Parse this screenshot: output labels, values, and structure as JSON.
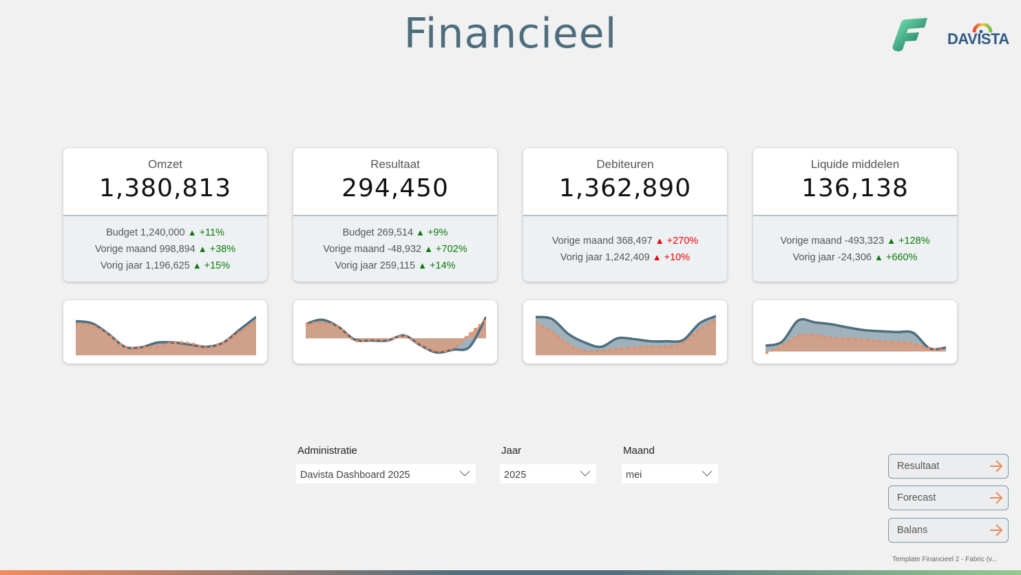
{
  "title": "Financieel",
  "logos": {
    "fabric": "Fabric logo",
    "davista": "DAVISTA"
  },
  "colors": {
    "accent": "#4e6e7e",
    "good": "#0b7a0b",
    "bad": "#e00000",
    "compare": "#f08a5a"
  },
  "cards": [
    {
      "label": "Omzet",
      "value": "1,380,813",
      "rows": [
        {
          "text": "Budget 1,240,000",
          "delta": "+11%",
          "status": "up"
        },
        {
          "text": "Vorige maand 998,894",
          "delta": "+38%",
          "status": "up"
        },
        {
          "text": "Vorig jaar 1,196,625",
          "delta": "+15%",
          "status": "up"
        }
      ]
    },
    {
      "label": "Resultaat",
      "value": "294,450",
      "rows": [
        {
          "text": "Budget 269,514",
          "delta": "+9%",
          "status": "up"
        },
        {
          "text": "Vorige maand -48,932",
          "delta": "+702%",
          "status": "up"
        },
        {
          "text": "Vorig jaar 259,115",
          "delta": "+14%",
          "status": "up"
        }
      ]
    },
    {
      "label": "Debiteuren",
      "value": "1,362,890",
      "rows": [
        {
          "text": "Vorige maand 368,497",
          "delta": "+270%",
          "status": "bad"
        },
        {
          "text": "Vorig jaar 1,242,409",
          "delta": "+10%",
          "status": "bad"
        }
      ]
    },
    {
      "label": "Liquide middelen",
      "value": "136,138",
      "rows": [
        {
          "text": "Vorige maand -493,323",
          "delta": "+128%",
          "status": "up"
        },
        {
          "text": "Vorig jaar -24,306",
          "delta": "+660%",
          "status": "up"
        }
      ]
    }
  ],
  "chart_data": [
    {
      "type": "area",
      "name": "Omzet trend",
      "ylim": [
        0,
        1
      ],
      "baseline": 0,
      "series": [
        {
          "name": "actual",
          "values": [
            0.8,
            0.75,
            0.5,
            0.2,
            0.19,
            0.3,
            0.3,
            0.25,
            0.2,
            0.3,
            0.6,
            0.9
          ]
        },
        {
          "name": "vergelijking",
          "values": [
            0.73,
            0.7,
            0.48,
            0.2,
            0.19,
            0.22,
            0.3,
            0.28,
            0.18,
            0.3,
            0.55,
            0.8
          ]
        }
      ]
    },
    {
      "type": "area",
      "name": "Resultaat trend",
      "ylim": [
        -0.6,
        0.9
      ],
      "baseline": 0,
      "series": [
        {
          "name": "actual",
          "values": [
            0.5,
            0.65,
            0.4,
            -0.05,
            -0.08,
            -0.08,
            0.1,
            -0.25,
            -0.5,
            -0.4,
            -0.3,
            0.75
          ]
        },
        {
          "name": "vergelijking",
          "values": [
            0.5,
            0.55,
            0.4,
            -0.08,
            -0.05,
            -0.05,
            0.08,
            -0.25,
            -0.45,
            -0.35,
            0.15,
            0.65
          ]
        }
      ]
    },
    {
      "type": "area",
      "name": "Debiteuren trend",
      "ylim": [
        0,
        1
      ],
      "baseline": 0,
      "series": [
        {
          "name": "actual",
          "values": [
            0.9,
            0.85,
            0.5,
            0.3,
            0.2,
            0.4,
            0.38,
            0.33,
            0.33,
            0.36,
            0.75,
            0.92
          ]
        },
        {
          "name": "vergelijking",
          "values": [
            0.75,
            0.55,
            0.25,
            0.1,
            0.1,
            0.15,
            0.18,
            0.2,
            0.2,
            0.3,
            0.6,
            0.85
          ]
        }
      ]
    },
    {
      "type": "area",
      "name": "Liquide middelen trend",
      "ylim": [
        -0.1,
        1
      ],
      "baseline": 0,
      "series": [
        {
          "name": "actual",
          "values": [
            0.15,
            0.25,
            0.8,
            0.75,
            0.7,
            0.62,
            0.55,
            0.52,
            0.5,
            0.48,
            0.08,
            0.1
          ]
        },
        {
          "name": "vergelijking",
          "values": [
            -0.05,
            0.15,
            0.4,
            0.42,
            0.35,
            0.33,
            0.3,
            0.26,
            0.24,
            0.2,
            0.08,
            0.03
          ]
        }
      ]
    }
  ],
  "filters": [
    {
      "label": "Administratie",
      "value": "Davista Dashboard 2025"
    },
    {
      "label": "Jaar",
      "value": "2025"
    },
    {
      "label": "Maand",
      "value": "mei"
    }
  ],
  "nav": [
    {
      "label": "Resultaat"
    },
    {
      "label": "Forecast"
    },
    {
      "label": "Balans"
    }
  ],
  "footer": "Template Financieel 2 - Fabric (v..."
}
